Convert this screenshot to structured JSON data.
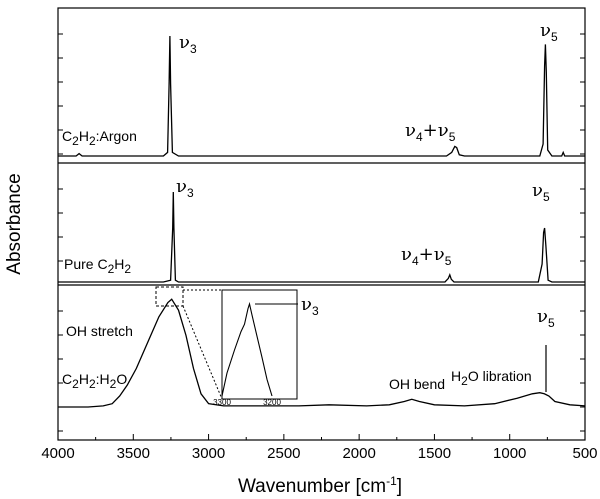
{
  "chart_data": {
    "type": "line",
    "xlabel": "Wavenumber [cm",
    "xlabel_sup": "-1",
    "xlabel_close": "]",
    "ylabel": "Absorbance",
    "xlim": [
      4000,
      500
    ],
    "x_reversed": true,
    "x_ticks": [
      "4000",
      "3500",
      "3000",
      "2500",
      "2000",
      "1500",
      "1000",
      "500"
    ],
    "series": [
      {
        "name": "C2H2:Argon",
        "points": [
          [
            4000,
            0.0
          ],
          [
            3880,
            0.0
          ],
          [
            3860,
            0.02
          ],
          [
            3840,
            0.0
          ],
          [
            3300,
            0.0
          ],
          [
            3272,
            0.03
          ],
          [
            3262,
            0.6
          ],
          [
            3257,
            1.0
          ],
          [
            3252,
            0.6
          ],
          [
            3240,
            0.03
          ],
          [
            3200,
            0.0
          ],
          [
            1420,
            0.0
          ],
          [
            1385,
            0.03
          ],
          [
            1365,
            0.08
          ],
          [
            1352,
            0.07
          ],
          [
            1335,
            0.01
          ],
          [
            1300,
            0.0
          ],
          [
            800,
            0.0
          ],
          [
            778,
            0.1
          ],
          [
            768,
            0.75
          ],
          [
            763,
            0.93
          ],
          [
            757,
            0.7
          ],
          [
            748,
            0.05
          ],
          [
            720,
            0.0
          ],
          [
            655,
            0.0
          ],
          [
            645,
            0.03
          ],
          [
            635,
            0.0
          ],
          [
            500,
            0.0
          ]
        ]
      },
      {
        "name": "Pure C2H2",
        "points": [
          [
            4000,
            0.0
          ],
          [
            3300,
            0.0
          ],
          [
            3252,
            0.02
          ],
          [
            3238,
            0.6
          ],
          [
            3234,
            1.0
          ],
          [
            3230,
            0.6
          ],
          [
            3220,
            0.02
          ],
          [
            3200,
            0.0
          ],
          [
            1430,
            0.0
          ],
          [
            1408,
            0.04
          ],
          [
            1398,
            0.08
          ],
          [
            1388,
            0.03
          ],
          [
            1370,
            0.0
          ],
          [
            810,
            0.0
          ],
          [
            785,
            0.2
          ],
          [
            775,
            0.55
          ],
          [
            768,
            0.6
          ],
          [
            760,
            0.4
          ],
          [
            745,
            0.02
          ],
          [
            720,
            0.0
          ],
          [
            500,
            0.0
          ]
        ]
      },
      {
        "name": "C2H2:H2O",
        "points": [
          [
            4000,
            0.0
          ],
          [
            3800,
            0.0
          ],
          [
            3700,
            0.01
          ],
          [
            3640,
            0.03
          ],
          [
            3590,
            0.1
          ],
          [
            3540,
            0.2
          ],
          [
            3480,
            0.35
          ],
          [
            3400,
            0.6
          ],
          [
            3330,
            0.82
          ],
          [
            3270,
            0.95
          ],
          [
            3245,
            0.98
          ],
          [
            3200,
            0.88
          ],
          [
            3150,
            0.65
          ],
          [
            3100,
            0.35
          ],
          [
            3050,
            0.12
          ],
          [
            3000,
            0.03
          ],
          [
            2900,
            0.01
          ],
          [
            2700,
            0.01
          ],
          [
            2400,
            0.01
          ],
          [
            2200,
            0.02
          ],
          [
            1950,
            0.01
          ],
          [
            1800,
            0.02
          ],
          [
            1700,
            0.05
          ],
          [
            1650,
            0.07
          ],
          [
            1600,
            0.05
          ],
          [
            1500,
            0.02
          ],
          [
            1300,
            0.01
          ],
          [
            1100,
            0.03
          ],
          [
            950,
            0.08
          ],
          [
            850,
            0.12
          ],
          [
            800,
            0.13
          ],
          [
            770,
            0.12
          ],
          [
            740,
            0.1
          ],
          [
            700,
            0.05
          ],
          [
            600,
            0.02
          ],
          [
            500,
            0.01
          ]
        ]
      }
    ],
    "inset": {
      "x_ticks": [
        "3300",
        "3200"
      ],
      "points": [
        [
          3300,
          0.0
        ],
        [
          3290,
          0.25
        ],
        [
          3275,
          0.5
        ],
        [
          3262,
          0.7
        ],
        [
          3255,
          0.78
        ],
        [
          3248,
          0.95
        ],
        [
          3245,
          1.0
        ],
        [
          3240,
          0.88
        ],
        [
          3230,
          0.65
        ],
        [
          3220,
          0.42
        ],
        [
          3210,
          0.18
        ],
        [
          3200,
          0.0
        ]
      ]
    }
  },
  "annotations": {
    "argon": {
      "nu3": {
        "sym": "ν",
        "sub": "3"
      },
      "combo": {
        "sym1": "ν",
        "sub1": "4",
        "plus": "+",
        "sym2": "ν",
        "sub2": "5"
      },
      "nu5": {
        "sym": "ν",
        "sub": "5"
      },
      "label": {
        "p1": "C",
        "s1": "2",
        "p2": "H",
        "s2": "2",
        "p3": ":Argon"
      }
    },
    "pure": {
      "nu3": {
        "sym": "ν",
        "sub": "3"
      },
      "combo": {
        "sym1": "ν",
        "sub1": "4",
        "plus": "+",
        "sym2": "ν",
        "sub2": "5"
      },
      "nu5": {
        "sym": "ν",
        "sub": "5"
      },
      "label": {
        "p1": "Pure C",
        "s1": "2",
        "p2": "H",
        "s2": "2"
      }
    },
    "water": {
      "oh_stretch": "OH stretch",
      "label": {
        "p1": "C",
        "s1": "2",
        "p2": "H",
        "s2": "2",
        "p3": ":H",
        "s3": "2",
        "p4": "O"
      },
      "oh_bend": "OH bend",
      "libration": {
        "p1": "H",
        "s1": "2",
        "p2": "O libration"
      },
      "nu5": {
        "sym": "ν",
        "sub": "5"
      },
      "inset_nu3": {
        "sym": "ν",
        "sub": "3"
      }
    }
  }
}
